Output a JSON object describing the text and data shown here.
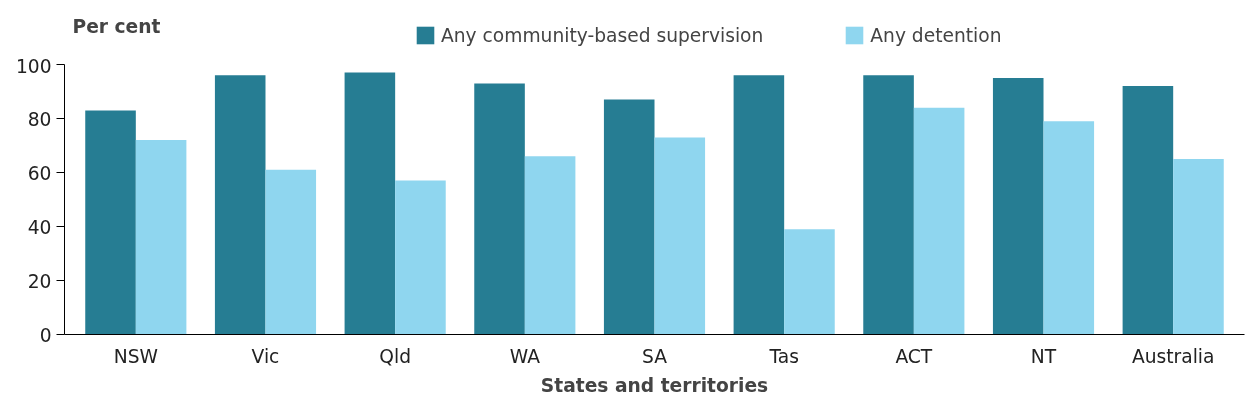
{
  "chart_data": {
    "type": "bar",
    "ylabel": "Per cent",
    "xlabel": "States and territories",
    "categories": [
      "NSW",
      "Vic",
      "Qld",
      "WA",
      "SA",
      "Tas",
      "ACT",
      "NT",
      "Australia"
    ],
    "series": [
      {
        "name": "Any community-based supervision",
        "color": "#267d93",
        "values": [
          83,
          96,
          97,
          93,
          87,
          96,
          96,
          95,
          92
        ]
      },
      {
        "name": "Any detention",
        "color": "#8fd6ef",
        "values": [
          72,
          61,
          57,
          66,
          73,
          39,
          84,
          79,
          65
        ]
      }
    ],
    "ylim": [
      0,
      100
    ],
    "yticks": [
      0,
      20,
      40,
      60,
      80,
      100
    ],
    "grid": false,
    "legend": "top"
  }
}
